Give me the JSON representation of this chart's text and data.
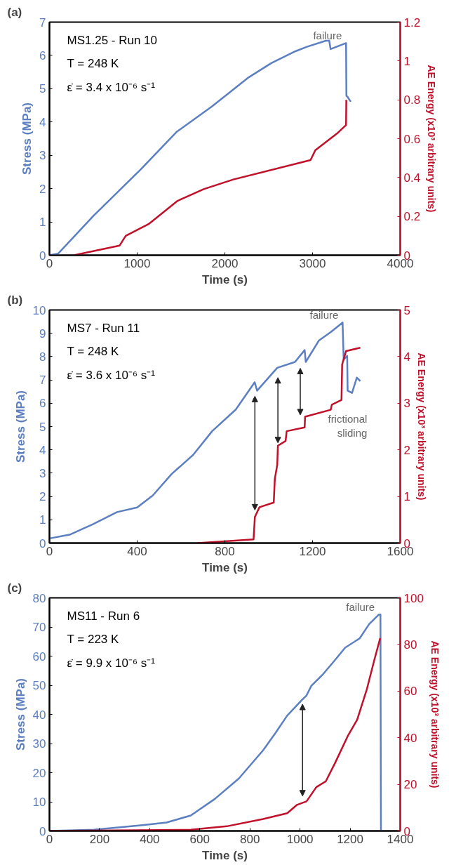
{
  "chart_data": [
    {
      "type": "line",
      "title": "(a)",
      "xlabel": "Time (s)",
      "ylabel": "Stress (MPa)",
      "y2label": "AE Energy (x10³ arbitrary units)",
      "xlim": [
        0,
        4000
      ],
      "xticks": [
        0,
        1000,
        2000,
        3000,
        4000
      ],
      "ylim": [
        0,
        7
      ],
      "yticks": [
        0,
        1,
        2,
        3,
        4,
        5,
        6,
        7
      ],
      "y2lim": [
        0,
        1.2
      ],
      "y2ticks": [
        0,
        0.2,
        0.4,
        0.6,
        0.8,
        1.0,
        1.2
      ],
      "grid": false,
      "series": [
        {
          "color": "#5b7fc0",
          "x": [
            0,
            100,
            500,
            771,
            1042,
            1448,
            1854,
            2260,
            2530,
            2801,
            2936,
            3152,
            3190,
            3206,
            3382,
            3386,
            3400,
            3436
          ],
          "values": [
            0,
            0.05,
            1.18,
            1.88,
            2.58,
            3.7,
            4.47,
            5.32,
            5.77,
            6.12,
            6.26,
            6.44,
            6.44,
            6.19,
            6.37,
            4.79,
            4.75,
            4.61
          ]
        },
        {
          "color": "#c0102a",
          "axis": "y2",
          "x": [
            280,
            800,
            870,
            1130,
            1461,
            1759,
            2097,
            2977,
            3031,
            3288,
            3382,
            3385
          ],
          "values": [
            0,
            0.05,
            0.1,
            0.16,
            0.28,
            0.34,
            0.39,
            0.49,
            0.54,
            0.63,
            0.67,
            0.8
          ]
        }
      ],
      "annotations": [
        "MS1.25 - Run 10",
        "T = 248 K",
        "ε̇ = 3.4 x 10⁻⁶ s⁻¹",
        {
          "text": "failure",
          "x": 3382,
          "y": 6.37
        }
      ]
    },
    {
      "type": "line",
      "title": "(b)",
      "xlabel": "Time (s)",
      "ylabel": "Stress (MPa)",
      "y2label": "AE Energy (x10³ arbitrary units)",
      "xlim": [
        0,
        1600
      ],
      "xticks": [
        0,
        400,
        800,
        1200,
        1600
      ],
      "ylim": [
        0,
        10
      ],
      "yticks": [
        0,
        1,
        2,
        3,
        4,
        5,
        6,
        7,
        8,
        9,
        10
      ],
      "y2lim": [
        0,
        5
      ],
      "y2ticks": [
        0,
        1,
        2,
        3,
        4,
        5
      ],
      "grid": false,
      "series": [
        {
          "color": "#5b7fc0",
          "x": [
            0,
            92,
            200,
            308,
            400,
            471,
            558,
            655,
            742,
            850,
            936,
            947,
            1039,
            1120,
            1164,
            1169,
            1229,
            1283,
            1337,
            1342,
            1358,
            1360,
            1380,
            1402,
            1418
          ],
          "values": [
            0.2,
            0.36,
            0.82,
            1.33,
            1.53,
            2.04,
            2.97,
            3.78,
            4.8,
            5.73,
            6.9,
            6.54,
            7.52,
            7.77,
            8.28,
            7.77,
            8.69,
            9.05,
            9.46,
            7.87,
            8.03,
            6.54,
            6.44,
            7.1,
            6.95
          ]
        },
        {
          "color": "#c0102a",
          "axis": "y2",
          "x": [
            677,
            931,
            937,
            958,
            1023,
            1028,
            1039,
            1042,
            1077,
            1082,
            1164,
            1166,
            1283,
            1288,
            1332,
            1335,
            1353,
            1418
          ],
          "values": [
            0,
            0.08,
            0.56,
            0.77,
            0.87,
            1.38,
            1.68,
            2.09,
            2.19,
            2.4,
            2.48,
            2.71,
            2.86,
            2.97,
            3.07,
            3.83,
            4.12,
            4.19
          ]
        }
      ],
      "annotations": [
        "MS7 - Run 11",
        "T = 248 K",
        "ε̇ = 3.6 x 10⁻⁶ s⁻¹",
        {
          "text": "failure",
          "x": 1337,
          "y": 9.46
        },
        {
          "text": "frictional sliding",
          "x": 1385,
          "y": 6.5
        }
      ]
    },
    {
      "type": "line",
      "title": "(c)",
      "xlabel": "Time (s)",
      "ylabel": "Stress (MPa)",
      "y2label": "AE Energy (x10³ arbitrary units)",
      "xlim": [
        0,
        1400
      ],
      "xticks": [
        0,
        200,
        400,
        600,
        800,
        1000,
        1200,
        1400
      ],
      "ylim": [
        0,
        80
      ],
      "yticks": [
        0,
        10,
        20,
        30,
        40,
        50,
        60,
        70,
        80
      ],
      "y2lim": [
        0,
        100
      ],
      "y2ticks": [
        0,
        20,
        40,
        60,
        80,
        100
      ],
      "grid": false,
      "series": [
        {
          "color": "#5b7fc0",
          "x": [
            0,
            178,
            371,
            467,
            564,
            660,
            756,
            853,
            901,
            949,
            1007,
            1026,
            1045,
            1093,
            1141,
            1180,
            1238,
            1276,
            1315,
            1321,
            1323
          ],
          "values": [
            0,
            0.4,
            2.0,
            2.9,
            5.3,
            11,
            18,
            27.7,
            33.5,
            39.6,
            44.9,
            46.5,
            49.8,
            53.9,
            58.8,
            62.9,
            66.1,
            71,
            74.3,
            74.3,
            0
          ]
        },
        {
          "color": "#c0102a",
          "axis": "y2",
          "x": [
            0,
            564,
            708,
            853,
            949,
            988,
            1026,
            1065,
            1103,
            1141,
            1190,
            1228,
            1267,
            1296,
            1320
          ],
          "values": [
            0,
            0.5,
            2,
            5.1,
            7.6,
            11.2,
            12.7,
            18.8,
            21.3,
            29.4,
            40.6,
            47.7,
            60.9,
            73.1,
            82.7
          ]
        }
      ],
      "annotations": [
        "MS11 - Run 6",
        "T = 223 K",
        "ε̇ = 9.9 x 10⁻⁶ s⁻¹",
        {
          "text": "failure",
          "x": 1315,
          "y": 74.3
        }
      ]
    }
  ]
}
